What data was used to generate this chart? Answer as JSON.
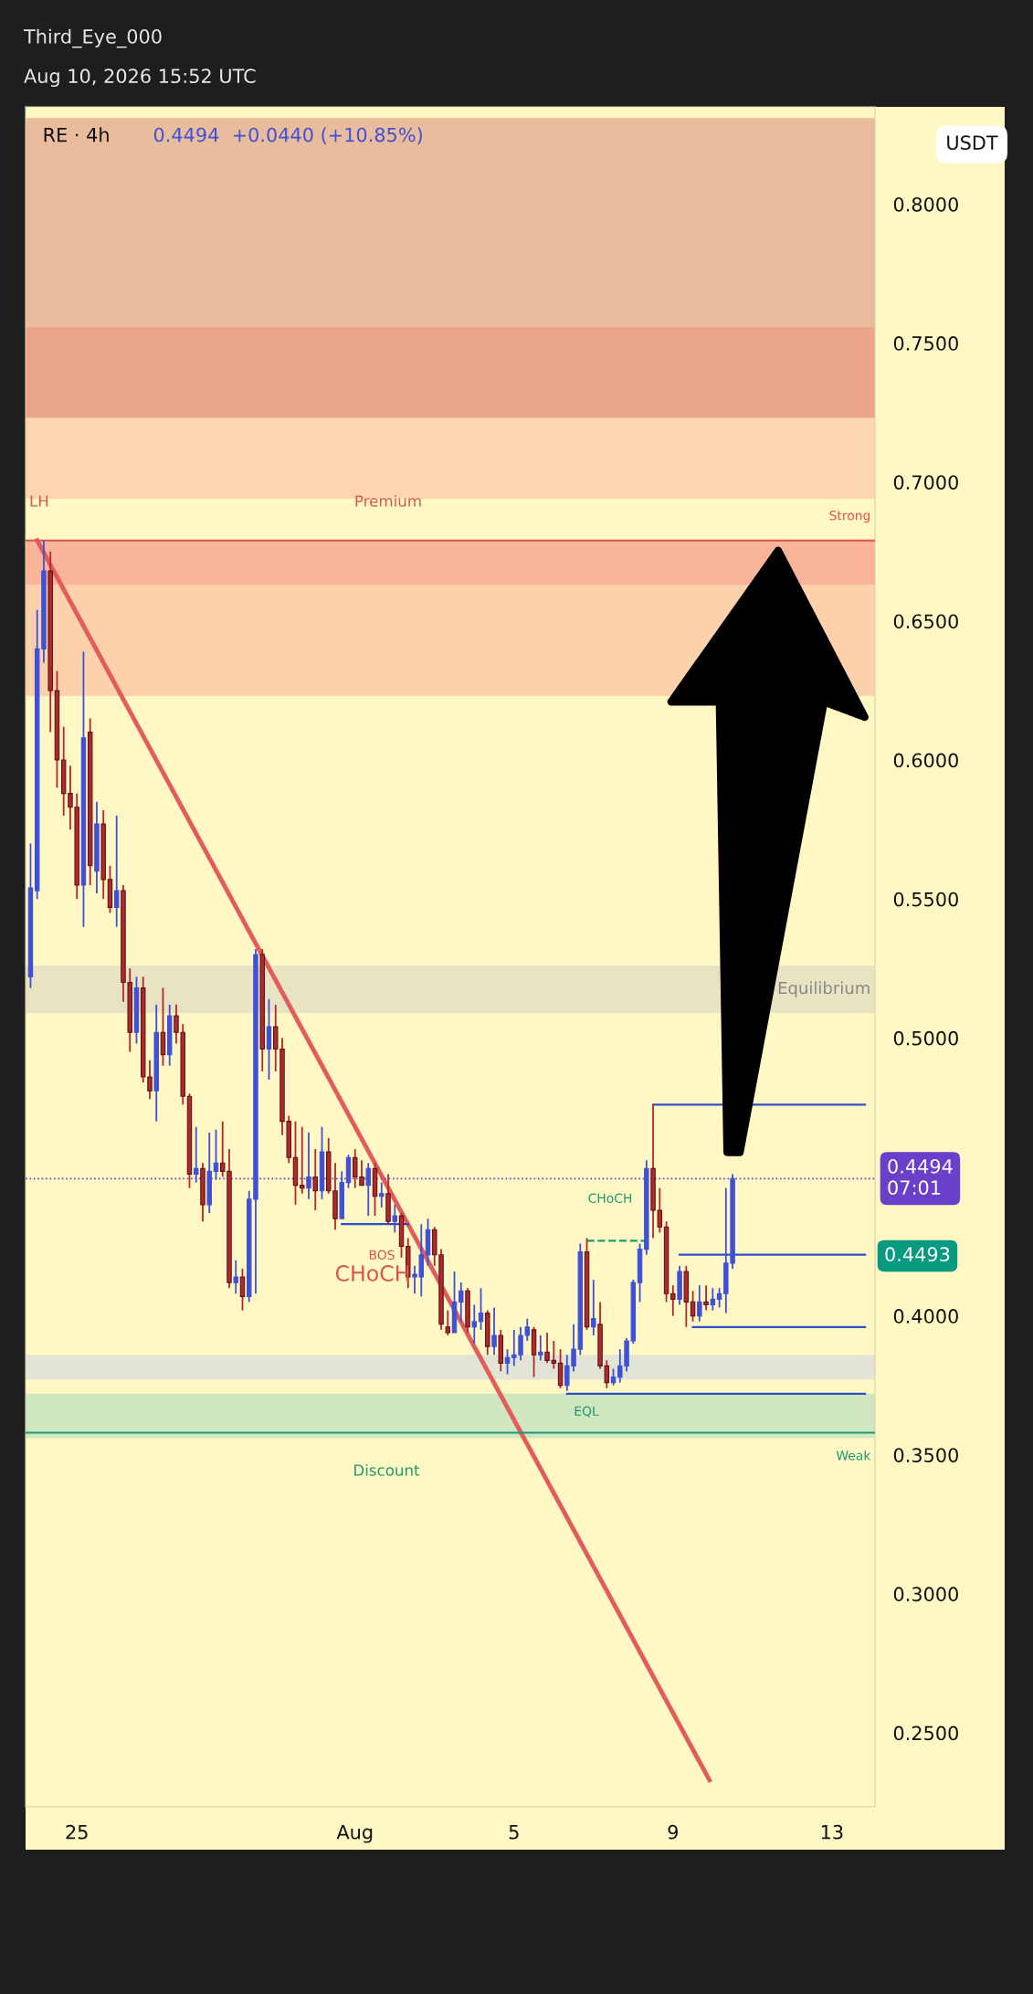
{
  "chart_data": {
    "type": "candlestick",
    "title": "RE · 4h",
    "subtitle": "0.4494  +0.0440 (+10.85%)",
    "ylabel": "USDT",
    "x": [
      "2026-07-23T20:00",
      "2026-07-24T00:00",
      "2026-07-24T04:00",
      "2026-07-24T08:00",
      "2026-07-24T12:00",
      "2026-07-24T16:00",
      "2026-07-24T20:00",
      "2026-07-25T00:00",
      "2026-07-25T04:00",
      "2026-07-25T08:00",
      "2026-07-25T12:00",
      "2026-07-25T16:00",
      "2026-07-25T20:00",
      "2026-07-26T00:00",
      "2026-07-26T04:00",
      "2026-07-26T08:00",
      "2026-07-26T12:00",
      "2026-07-26T16:00",
      "2026-07-26T20:00",
      "2026-07-27T00:00",
      "2026-07-27T04:00",
      "2026-07-27T08:00",
      "2026-07-27T12:00",
      "2026-07-27T16:00",
      "2026-07-27T20:00",
      "2026-07-28T00:00",
      "2026-07-28T04:00",
      "2026-07-28T08:00",
      "2026-07-28T12:00",
      "2026-07-28T16:00",
      "2026-07-28T20:00",
      "2026-07-29T00:00",
      "2026-07-29T04:00",
      "2026-07-29T08:00",
      "2026-07-29T12:00",
      "2026-07-29T16:00",
      "2026-07-29T20:00",
      "2026-07-30T00:00",
      "2026-07-30T04:00",
      "2026-07-30T08:00",
      "2026-07-30T12:00",
      "2026-07-30T16:00",
      "2026-07-30T20:00",
      "2026-07-31T00:00",
      "2026-07-31T04:00",
      "2026-07-31T08:00",
      "2026-07-31T12:00",
      "2026-07-31T16:00",
      "2026-07-31T20:00",
      "2026-08-01T00:00",
      "2026-08-01T04:00",
      "2026-08-01T08:00",
      "2026-08-01T12:00",
      "2026-08-01T16:00",
      "2026-08-01T20:00",
      "2026-08-02T00:00",
      "2026-08-02T04:00",
      "2026-08-02T08:00",
      "2026-08-02T12:00",
      "2026-08-02T16:00",
      "2026-08-02T20:00",
      "2026-08-03T00:00",
      "2026-08-03T04:00",
      "2026-08-03T08:00",
      "2026-08-03T12:00",
      "2026-08-03T16:00",
      "2026-08-03T20:00",
      "2026-08-04T00:00",
      "2026-08-04T04:00",
      "2026-08-04T08:00",
      "2026-08-04T12:00",
      "2026-08-04T16:00",
      "2026-08-04T20:00",
      "2026-08-05T00:00",
      "2026-08-05T04:00",
      "2026-08-05T08:00",
      "2026-08-05T12:00",
      "2026-08-05T16:00",
      "2026-08-05T20:00",
      "2026-08-06T00:00",
      "2026-08-06T04:00",
      "2026-08-06T08:00",
      "2026-08-06T12:00",
      "2026-08-06T16:00",
      "2026-08-06T20:00",
      "2026-08-07T00:00",
      "2026-08-07T04:00",
      "2026-08-07T08:00",
      "2026-08-07T12:00",
      "2026-08-07T16:00",
      "2026-08-07T20:00",
      "2026-08-08T00:00",
      "2026-08-08T04:00",
      "2026-08-08T08:00",
      "2026-08-08T12:00",
      "2026-08-08T16:00",
      "2026-08-08T20:00",
      "2026-08-09T00:00",
      "2026-08-09T04:00",
      "2026-08-09T08:00",
      "2026-08-09T12:00",
      "2026-08-09T16:00",
      "2026-08-09T20:00",
      "2026-08-10T00:00",
      "2026-08-10T04:00",
      "2026-08-10T08:00",
      "2026-08-10T12:00"
    ],
    "ohlc": [
      [
        0.522,
        0.57,
        0.518,
        0.554
      ],
      [
        0.553,
        0.654,
        0.55,
        0.64
      ],
      [
        0.64,
        0.679,
        0.635,
        0.668
      ],
      [
        0.668,
        0.675,
        0.61,
        0.625
      ],
      [
        0.625,
        0.632,
        0.59,
        0.6
      ],
      [
        0.6,
        0.612,
        0.58,
        0.588
      ],
      [
        0.588,
        0.598,
        0.575,
        0.583
      ],
      [
        0.583,
        0.588,
        0.55,
        0.555
      ],
      [
        0.555,
        0.639,
        0.54,
        0.608
      ],
      [
        0.61,
        0.615,
        0.555,
        0.562
      ],
      [
        0.56,
        0.585,
        0.552,
        0.577
      ],
      [
        0.577,
        0.582,
        0.55,
        0.557
      ],
      [
        0.557,
        0.562,
        0.545,
        0.547
      ],
      [
        0.547,
        0.58,
        0.54,
        0.553
      ],
      [
        0.553,
        0.555,
        0.513,
        0.52
      ],
      [
        0.52,
        0.525,
        0.495,
        0.502
      ],
      [
        0.502,
        0.522,
        0.498,
        0.518
      ],
      [
        0.518,
        0.522,
        0.484,
        0.486
      ],
      [
        0.486,
        0.492,
        0.478,
        0.481
      ],
      [
        0.481,
        0.512,
        0.47,
        0.502
      ],
      [
        0.502,
        0.518,
        0.49,
        0.494
      ],
      [
        0.494,
        0.512,
        0.49,
        0.508
      ],
      [
        0.508,
        0.512,
        0.498,
        0.502
      ],
      [
        0.502,
        0.505,
        0.476,
        0.479
      ],
      [
        0.479,
        0.48,
        0.446,
        0.451
      ],
      [
        0.451,
        0.468,
        0.448,
        0.453
      ],
      [
        0.453,
        0.455,
        0.434,
        0.44
      ],
      [
        0.44,
        0.466,
        0.437,
        0.452
      ],
      [
        0.452,
        0.467,
        0.449,
        0.455
      ],
      [
        0.455,
        0.47,
        0.45,
        0.452
      ],
      [
        0.452,
        0.46,
        0.41,
        0.412
      ],
      [
        0.412,
        0.42,
        0.408,
        0.414
      ],
      [
        0.414,
        0.417,
        0.402,
        0.407
      ],
      [
        0.407,
        0.445,
        0.405,
        0.442
      ],
      [
        0.442,
        0.532,
        0.408,
        0.53
      ],
      [
        0.53,
        0.532,
        0.488,
        0.496
      ],
      [
        0.496,
        0.514,
        0.485,
        0.504
      ],
      [
        0.504,
        0.512,
        0.488,
        0.496
      ],
      [
        0.496,
        0.5,
        0.465,
        0.47
      ],
      [
        0.47,
        0.472,
        0.455,
        0.457
      ],
      [
        0.457,
        0.47,
        0.44,
        0.447
      ],
      [
        0.447,
        0.468,
        0.444,
        0.446
      ],
      [
        0.446,
        0.466,
        0.442,
        0.45
      ],
      [
        0.45,
        0.46,
        0.438,
        0.445
      ],
      [
        0.445,
        0.468,
        0.442,
        0.459
      ],
      [
        0.459,
        0.464,
        0.444,
        0.445
      ],
      [
        0.445,
        0.455,
        0.431,
        0.435
      ],
      [
        0.435,
        0.452,
        0.435,
        0.448
      ],
      [
        0.448,
        0.458,
        0.446,
        0.457
      ],
      [
        0.457,
        0.46,
        0.446,
        0.45
      ],
      [
        0.45,
        0.456,
        0.447,
        0.447
      ],
      [
        0.447,
        0.455,
        0.436,
        0.453
      ],
      [
        0.453,
        0.455,
        0.436,
        0.443
      ],
      [
        0.443,
        0.448,
        0.439,
        0.444
      ],
      [
        0.444,
        0.451,
        0.433,
        0.434
      ],
      [
        0.434,
        0.44,
        0.43,
        0.436
      ],
      [
        0.436,
        0.437,
        0.421,
        0.425
      ],
      [
        0.425,
        0.428,
        0.41,
        0.414
      ],
      [
        0.414,
        0.418,
        0.408,
        0.415
      ],
      [
        0.414,
        0.433,
        0.407,
        0.422
      ],
      [
        0.422,
        0.435,
        0.418,
        0.431
      ],
      [
        0.431,
        0.432,
        0.418,
        0.422
      ],
      [
        0.422,
        0.424,
        0.395,
        0.397
      ],
      [
        0.396,
        0.402,
        0.393,
        0.394
      ],
      [
        0.394,
        0.416,
        0.394,
        0.405
      ],
      [
        0.405,
        0.412,
        0.398,
        0.409
      ],
      [
        0.409,
        0.41,
        0.394,
        0.396
      ],
      [
        0.396,
        0.404,
        0.39,
        0.398
      ],
      [
        0.398,
        0.41,
        0.395,
        0.401
      ],
      [
        0.401,
        0.402,
        0.386,
        0.389
      ],
      [
        0.389,
        0.403,
        0.386,
        0.393
      ],
      [
        0.393,
        0.395,
        0.38,
        0.383
      ],
      [
        0.383,
        0.388,
        0.379,
        0.385
      ],
      [
        0.385,
        0.395,
        0.382,
        0.386
      ],
      [
        0.386,
        0.396,
        0.384,
        0.393
      ],
      [
        0.393,
        0.399,
        0.391,
        0.396
      ],
      [
        0.395,
        0.396,
        0.378,
        0.386
      ],
      [
        0.386,
        0.393,
        0.384,
        0.387
      ],
      [
        0.387,
        0.394,
        0.383,
        0.384
      ],
      [
        0.384,
        0.391,
        0.381,
        0.383
      ],
      [
        0.383,
        0.388,
        0.374,
        0.375
      ],
      [
        0.375,
        0.386,
        0.373,
        0.382
      ],
      [
        0.382,
        0.397,
        0.38,
        0.388
      ],
      [
        0.388,
        0.426,
        0.386,
        0.423
      ],
      [
        0.423,
        0.428,
        0.395,
        0.396
      ],
      [
        0.396,
        0.413,
        0.393,
        0.399
      ],
      [
        0.397,
        0.405,
        0.381,
        0.382
      ],
      [
        0.382,
        0.384,
        0.374,
        0.376
      ],
      [
        0.376,
        0.381,
        0.375,
        0.378
      ],
      [
        0.378,
        0.388,
        0.376,
        0.382
      ],
      [
        0.382,
        0.392,
        0.38,
        0.391
      ],
      [
        0.391,
        0.413,
        0.39,
        0.412
      ],
      [
        0.412,
        0.426,
        0.405,
        0.424
      ],
      [
        0.424,
        0.456,
        0.422,
        0.453
      ],
      [
        0.453,
        0.476,
        0.428,
        0.438
      ],
      [
        0.438,
        0.446,
        0.43,
        0.432
      ],
      [
        0.432,
        0.434,
        0.405,
        0.408
      ],
      [
        0.408,
        0.411,
        0.4,
        0.406
      ],
      [
        0.406,
        0.418,
        0.404,
        0.416
      ],
      [
        0.416,
        0.418,
        0.396,
        0.405
      ],
      [
        0.405,
        0.409,
        0.398,
        0.4
      ],
      [
        0.4,
        0.411,
        0.398,
        0.405
      ],
      [
        0.405,
        0.411,
        0.402,
        0.404
      ],
      [
        0.404,
        0.41,
        0.402,
        0.406
      ],
      [
        0.406,
        0.41,
        0.403,
        0.408
      ],
      [
        0.408,
        0.446,
        0.401,
        0.419
      ],
      [
        0.419,
        0.451,
        0.417,
        0.4494
      ]
    ],
    "colors": [
      "#3f51d6",
      "#3f51d6",
      "#3f51d6",
      "#b2282e",
      "#b2282e",
      "#b2282e",
      "#b2282e",
      "#b2282e",
      "#3f51d6",
      "#b2282e",
      "#3f51d6",
      "#b2282e",
      "#b2282e",
      "#3f51d6",
      "#b2282e",
      "#b2282e",
      "#3f51d6",
      "#b2282e",
      "#b2282e",
      "#3f51d6",
      "#b2282e",
      "#3f51d6",
      "#b2282e",
      "#b2282e",
      "#b2282e",
      "#3f51d6",
      "#b2282e",
      "#3f51d6",
      "#3f51d6",
      "#b2282e",
      "#b2282e",
      "#3f51d6",
      "#b2282e",
      "#3f51d6",
      "#3f51d6",
      "#b2282e",
      "#3f51d6",
      "#b2282e",
      "#b2282e",
      "#b2282e",
      "#b2282e",
      "#b2282e",
      "#3f51d6",
      "#b2282e",
      "#3f51d6",
      "#b2282e",
      "#b2282e",
      "#3f51d6",
      "#3f51d6",
      "#b2282e",
      "#b2282e",
      "#3f51d6",
      "#b2282e",
      "#3f51d6",
      "#b2282e",
      "#3f51d6",
      "#b2282e",
      "#b2282e",
      "#3f51d6",
      "#3f51d6",
      "#3f51d6",
      "#b2282e",
      "#b2282e",
      "#b2282e",
      "#3f51d6",
      "#3f51d6",
      "#b2282e",
      "#3f51d6",
      "#3f51d6",
      "#b2282e",
      "#3f51d6",
      "#b2282e",
      "#3f51d6",
      "#3f51d6",
      "#3f51d6",
      "#3f51d6",
      "#b2282e",
      "#3f51d6",
      "#b2282e",
      "#b2282e",
      "#b2282e",
      "#3f51d6",
      "#3f51d6",
      "#3f51d6",
      "#b2282e",
      "#3f51d6",
      "#b2282e",
      "#b2282e",
      "#3f51d6",
      "#3f51d6",
      "#3f51d6",
      "#3f51d6",
      "#3f51d6",
      "#3f51d6",
      "#b2282e",
      "#b2282e",
      "#b2282e",
      "#b2282e",
      "#3f51d6",
      "#b2282e",
      "#b2282e",
      "#3f51d6",
      "#b2282e",
      "#3f51d6",
      "#3f51d6",
      "#3f51d6",
      "#3f51d6"
    ],
    "series": [
      {
        "type": "line",
        "color": "#e25c5c",
        "x": [
          "2026-07-24T00:00",
          "2026-08-09T22:00"
        ],
        "values": [
          0.679,
          0.233
        ]
      },
      {
        "type": "line",
        "color": "#2f4fc9",
        "x": [
          "2026-08-08T12:00",
          "2026-08-13T20:00"
        ],
        "values": [
          0.476,
          0.476
        ]
      },
      {
        "type": "line",
        "color": "#2f4fc9",
        "x": [
          "2026-08-09T04:00",
          "2026-08-13T20:00"
        ],
        "values": [
          0.422,
          0.422
        ]
      },
      {
        "type": "line",
        "color": "#2f4fc9",
        "x": [
          "2026-08-09T12:00",
          "2026-08-13T20:00"
        ],
        "values": [
          0.396,
          0.396
        ]
      },
      {
        "type": "line",
        "color": "#2f4fc9",
        "x": [
          "2026-08-06T08:00",
          "2026-08-13T20:00"
        ],
        "values": [
          0.372,
          0.372
        ]
      },
      {
        "type": "line",
        "color": "#2f4fc9",
        "x": [
          "2026-07-31T16:00",
          "2026-08-02T08:00"
        ],
        "values": [
          0.433,
          0.433
        ]
      },
      {
        "type": "line",
        "color": "#1f9a6e",
        "line_style": "dashed",
        "x": [
          "2026-08-06T20:00",
          "2026-08-08T08:00"
        ],
        "values": [
          0.427,
          0.427
        ]
      }
    ],
    "bands": [
      {
        "axis": "y",
        "from": 0.756,
        "to": 0.831,
        "color": "#e8bc9c"
      },
      {
        "axis": "y",
        "from": 0.723,
        "to": 0.756,
        "color": "#eba58c"
      },
      {
        "axis": "y",
        "from": 0.694,
        "to": 0.723,
        "color": "#fdd5b1"
      },
      {
        "axis": "y",
        "from": 0.623,
        "to": 0.679,
        "color": "#fdd1ac"
      },
      {
        "axis": "y",
        "from": 0.663,
        "to": 0.679,
        "color": "#f9b49a"
      },
      {
        "axis": "y",
        "from": 0.509,
        "to": 0.526,
        "color": "#e8e3c2",
        "label": "Equilibrium"
      },
      {
        "axis": "y",
        "from": 0.377,
        "to": 0.386,
        "color": "#e2e5d5"
      },
      {
        "axis": "y",
        "from": 0.356,
        "to": 0.372,
        "color": "#cfe6c0"
      }
    ],
    "ref_lines": [
      {
        "axis": "y",
        "value": 0.679,
        "label": "Strong",
        "color": "#d9534f",
        "line_style": "solid"
      },
      {
        "axis": "y",
        "value": 0.358,
        "label": "Weak",
        "color": "#1f9a6e",
        "line_style": "solid"
      },
      {
        "axis": "y",
        "value": 0.4494,
        "label": "0.4494\n07:01",
        "color": "#6a3fc9",
        "line_style": "dotted"
      }
    ],
    "annotations": [
      "Third_Eye_000",
      "Aug 10, 2026 15:52 UTC",
      "LH",
      "Premium",
      "BOS",
      "CHoCH",
      "CHoCH",
      "EQL",
      "Discount",
      "0.4493"
    ],
    "xlim": [
      "2026-07-23T17:00",
      "2026-08-14T02:00"
    ],
    "xticks": [
      {
        "value": "2026-07-25",
        "label": "25"
      },
      {
        "value": "2026-08-01",
        "label": "Aug"
      },
      {
        "value": "2026-08-05",
        "label": "5"
      },
      {
        "value": "2026-08-09",
        "label": "9"
      },
      {
        "value": "2026-08-13",
        "label": "13"
      }
    ],
    "ylim": [
      0.2234,
      0.835
    ],
    "yticks": [
      {
        "value": 0.25,
        "label": "0.2500"
      },
      {
        "value": 0.3,
        "label": "0.3000"
      },
      {
        "value": 0.35,
        "label": "0.3500"
      },
      {
        "value": 0.4,
        "label": "0.4000"
      },
      {
        "value": 0.5,
        "label": "0.5000"
      },
      {
        "value": 0.55,
        "label": "0.5500"
      },
      {
        "value": 0.6,
        "label": "0.6000"
      },
      {
        "value": 0.65,
        "label": "0.6500"
      },
      {
        "value": 0.7,
        "label": "0.7000"
      },
      {
        "value": 0.75,
        "label": "0.7500"
      },
      {
        "value": 0.8,
        "label": "0.8000"
      }
    ],
    "grid": false
  }
}
